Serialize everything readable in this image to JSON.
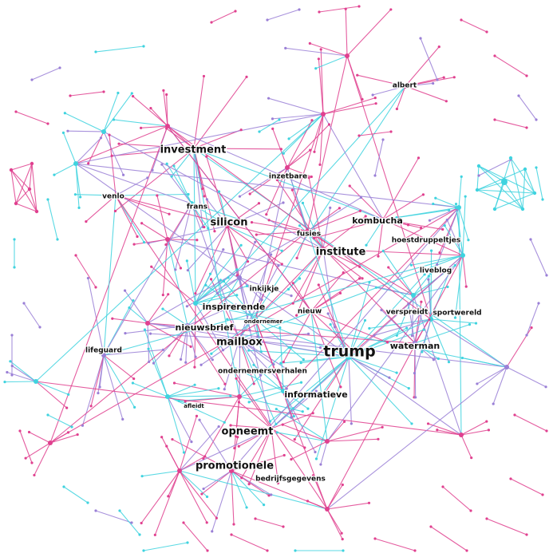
{
  "palette": {
    "magenta": "#e0408f",
    "cyan": "#3fd3df",
    "lavender": "#9a7fd6",
    "background": "#ffffff"
  },
  "chart_data": {
    "type": "network",
    "keywords": [
      {
        "label": "investment",
        "weight": 3
      },
      {
        "label": "silicon",
        "weight": 3
      },
      {
        "label": "institute",
        "weight": 3
      },
      {
        "label": "trump",
        "weight": 5
      },
      {
        "label": "mailbox",
        "weight": 3
      },
      {
        "label": "opneemt",
        "weight": 3
      },
      {
        "label": "promotionele",
        "weight": 3
      },
      {
        "label": "kombucha",
        "weight": 2
      },
      {
        "label": "inspirerende",
        "weight": 2
      },
      {
        "label": "waterman",
        "weight": 2
      },
      {
        "label": "informatieve",
        "weight": 2
      },
      {
        "label": "nieuwsbrief",
        "weight": 2
      },
      {
        "label": "ondernemersverhalen",
        "weight": 1
      },
      {
        "label": "bedrijfsgegevens",
        "weight": 1
      },
      {
        "label": "albert",
        "weight": 1
      },
      {
        "label": "inzetbare",
        "weight": 1
      },
      {
        "label": "venlo",
        "weight": 1
      },
      {
        "label": "frans",
        "weight": 1
      },
      {
        "label": "fusies",
        "weight": 1
      },
      {
        "label": "hoestdruppeltjes",
        "weight": 1
      },
      {
        "label": "liveblog",
        "weight": 1
      },
      {
        "label": "inkijkje",
        "weight": 1
      },
      {
        "label": "nieuw",
        "weight": 1
      },
      {
        "label": "ondernemer",
        "weight": 0
      },
      {
        "label": "verspreidt",
        "weight": 1
      },
      {
        "label": "sportwereld",
        "weight": 1
      },
      {
        "label": "lifeguard",
        "weight": 1
      },
      {
        "label": "afleidt",
        "weight": 0
      }
    ]
  }
}
